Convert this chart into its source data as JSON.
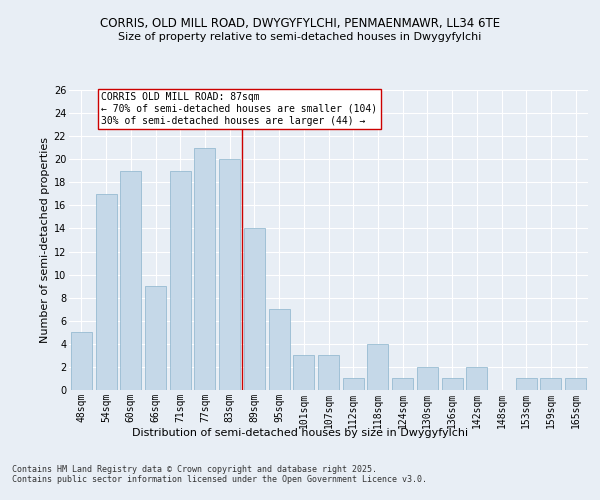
{
  "title_line1": "CORRIS, OLD MILL ROAD, DWYGYFYLCHI, PENMAENMAWR, LL34 6TE",
  "title_line2": "Size of property relative to semi-detached houses in Dwygyfylchi",
  "xlabel": "Distribution of semi-detached houses by size in Dwygyfylchi",
  "ylabel": "Number of semi-detached properties",
  "categories": [
    "48sqm",
    "54sqm",
    "60sqm",
    "66sqm",
    "71sqm",
    "77sqm",
    "83sqm",
    "89sqm",
    "95sqm",
    "101sqm",
    "107sqm",
    "112sqm",
    "118sqm",
    "124sqm",
    "130sqm",
    "136sqm",
    "142sqm",
    "148sqm",
    "153sqm",
    "159sqm",
    "165sqm"
  ],
  "values": [
    5,
    17,
    19,
    9,
    19,
    21,
    20,
    14,
    7,
    3,
    3,
    1,
    4,
    1,
    2,
    1,
    2,
    0,
    1,
    1,
    1
  ],
  "bar_color": "#c5d8e8",
  "bar_edge_color": "#8ab4cc",
  "vline_color": "#cc0000",
  "annotation_text": "CORRIS OLD MILL ROAD: 87sqm\n← 70% of semi-detached houses are smaller (104)\n30% of semi-detached houses are larger (44) →",
  "annotation_box_color": "#ffffff",
  "annotation_box_edge_color": "#cc0000",
  "ylim": [
    0,
    26
  ],
  "yticks": [
    0,
    2,
    4,
    6,
    8,
    10,
    12,
    14,
    16,
    18,
    20,
    22,
    24,
    26
  ],
  "bg_color": "#e8eef5",
  "plot_bg_color": "#e8eef5",
  "grid_color": "#ffffff",
  "footer_text": "Contains HM Land Registry data © Crown copyright and database right 2025.\nContains public sector information licensed under the Open Government Licence v3.0.",
  "title_fontsize": 8.5,
  "subtitle_fontsize": 8.0,
  "axis_label_fontsize": 8.0,
  "tick_fontsize": 7.0,
  "annotation_fontsize": 7.0,
  "footer_fontsize": 6.0
}
